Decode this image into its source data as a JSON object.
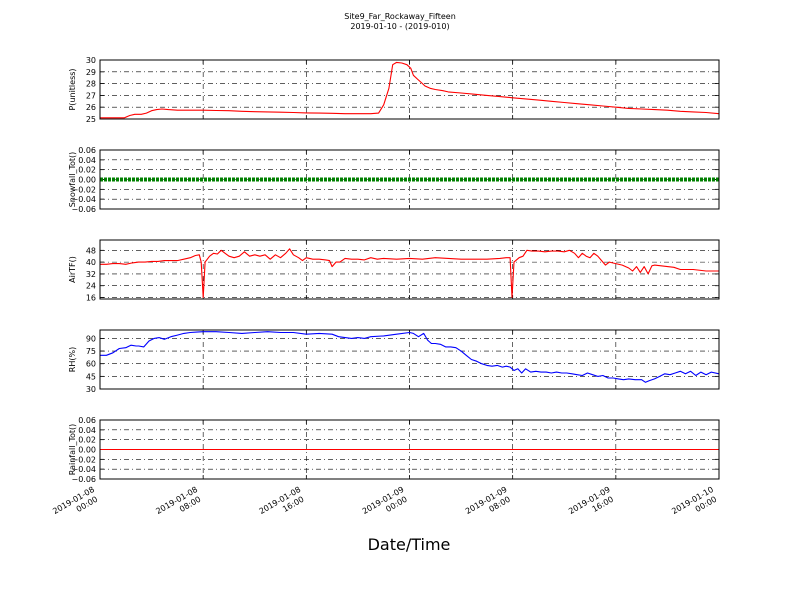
{
  "chart_data": {
    "type": "line",
    "title": "Site9_Far_Rockaway_Fifteen",
    "subtitle": "2019-01-10 - (2019-010)",
    "xlabel": "Date/Time",
    "x_ticks": [
      {
        "value": 0,
        "label": [
          "2019-01-08",
          "00:00"
        ]
      },
      {
        "value": 8,
        "label": [
          "2019-01-08",
          "08:00"
        ]
      },
      {
        "value": 16,
        "label": [
          "2019-01-08",
          "16:00"
        ]
      },
      {
        "value": 24,
        "label": [
          "2019-01-09",
          "00:00"
        ]
      },
      {
        "value": 32,
        "label": [
          "2019-01-09",
          "08:00"
        ]
      },
      {
        "value": 40,
        "label": [
          "2019-01-09",
          "16:00"
        ]
      },
      {
        "value": 48,
        "label": [
          "2019-01-10",
          "00:00"
        ]
      }
    ],
    "xlim": [
      0,
      48
    ],
    "grid": true,
    "panels": [
      {
        "ylabel": "P(unitless)",
        "ylim": [
          25,
          30
        ],
        "yticks": [
          25,
          26,
          27,
          28,
          29,
          30
        ],
        "color": "#ff0000",
        "style": "line",
        "points": [
          [
            0,
            25.1
          ],
          [
            1.9,
            25.1
          ],
          [
            2.3,
            25.3
          ],
          [
            2.7,
            25.4
          ],
          [
            3.2,
            25.4
          ],
          [
            3.6,
            25.5
          ],
          [
            4,
            25.7
          ],
          [
            4.4,
            25.8
          ],
          [
            4.8,
            25.85
          ],
          [
            5.3,
            25.8
          ],
          [
            6,
            25.75
          ],
          [
            7,
            25.75
          ],
          [
            8,
            25.75
          ],
          [
            9,
            25.72
          ],
          [
            10,
            25.7
          ],
          [
            11,
            25.65
          ],
          [
            12,
            25.62
          ],
          [
            13,
            25.6
          ],
          [
            14,
            25.58
          ],
          [
            15,
            25.55
          ],
          [
            16,
            25.52
          ],
          [
            17,
            25.5
          ],
          [
            18,
            25.48
          ],
          [
            19,
            25.45
          ],
          [
            20,
            25.45
          ],
          [
            21,
            25.45
          ],
          [
            21.6,
            25.5
          ],
          [
            22,
            26.2
          ],
          [
            22.4,
            27.6
          ],
          [
            22.7,
            29.6
          ],
          [
            23,
            29.8
          ],
          [
            23.4,
            29.75
          ],
          [
            23.8,
            29.6
          ],
          [
            24.1,
            29.3
          ],
          [
            24.3,
            28.7
          ],
          [
            24.6,
            28.4
          ],
          [
            24.9,
            28.1
          ],
          [
            25.2,
            27.8
          ],
          [
            25.6,
            27.6
          ],
          [
            26,
            27.5
          ],
          [
            26.6,
            27.4
          ],
          [
            27,
            27.3
          ],
          [
            28,
            27.2
          ],
          [
            29,
            27.1
          ],
          [
            30,
            27.0
          ],
          [
            31,
            26.9
          ],
          [
            32,
            26.8
          ],
          [
            33,
            26.7
          ],
          [
            34,
            26.6
          ],
          [
            35,
            26.5
          ],
          [
            36,
            26.4
          ],
          [
            37,
            26.3
          ],
          [
            38,
            26.2
          ],
          [
            39,
            26.1
          ],
          [
            40,
            26.0
          ],
          [
            41,
            25.9
          ],
          [
            42,
            25.85
          ],
          [
            43,
            25.8
          ],
          [
            44,
            25.75
          ],
          [
            45,
            25.65
          ],
          [
            46,
            25.6
          ],
          [
            47,
            25.55
          ],
          [
            48,
            25.45
          ]
        ]
      },
      {
        "ylabel": "Snowfall_Tot()",
        "ylim": [
          -0.06,
          0.06
        ],
        "yticks": [
          -0.06,
          -0.04,
          -0.02,
          0.0,
          0.02,
          0.04,
          0.06
        ],
        "ytick_labels": [
          "−0.06",
          "−0.04",
          "−0.02",
          "0.00",
          "0.02",
          "0.04",
          "0.06"
        ],
        "color": "#008000",
        "style": "thick",
        "points": [
          [
            0,
            0
          ],
          [
            48,
            0
          ]
        ]
      },
      {
        "ylabel": "AirTF()",
        "ylim": [
          15,
          55
        ],
        "yticks": [
          16,
          24,
          32,
          40,
          48
        ],
        "color": "#ff0000",
        "style": "line",
        "points": [
          [
            0,
            38.5
          ],
          [
            0.5,
            38.5
          ],
          [
            1,
            39
          ],
          [
            1.5,
            39
          ],
          [
            2,
            38.5
          ],
          [
            2.5,
            39.5
          ],
          [
            3,
            40
          ],
          [
            3.5,
            40
          ],
          [
            4,
            40.5
          ],
          [
            4.5,
            40.5
          ],
          [
            5,
            41
          ],
          [
            6,
            41
          ],
          [
            6.5,
            42
          ],
          [
            7,
            43
          ],
          [
            7.4,
            44.5
          ],
          [
            7.7,
            45
          ],
          [
            7.85,
            40
          ],
          [
            8,
            16
          ],
          [
            8.15,
            40
          ],
          [
            8.5,
            44
          ],
          [
            8.8,
            46
          ],
          [
            9.1,
            45.5
          ],
          [
            9.4,
            48
          ],
          [
            9.7,
            46
          ],
          [
            10,
            44
          ],
          [
            10.4,
            43
          ],
          [
            10.8,
            44
          ],
          [
            11.2,
            47
          ],
          [
            11.6,
            44
          ],
          [
            12,
            45
          ],
          [
            12.4,
            44
          ],
          [
            12.8,
            45
          ],
          [
            13.2,
            42
          ],
          [
            13.6,
            45
          ],
          [
            14,
            43
          ],
          [
            14.4,
            46
          ],
          [
            14.7,
            49
          ],
          [
            15,
            45
          ],
          [
            15.4,
            43
          ],
          [
            15.7,
            41
          ],
          [
            16,
            43
          ],
          [
            16.5,
            42
          ],
          [
            17,
            42
          ],
          [
            17.5,
            41.5
          ],
          [
            17.8,
            41
          ],
          [
            18,
            37
          ],
          [
            18.3,
            40
          ],
          [
            18.6,
            40
          ],
          [
            19,
            42.5
          ],
          [
            19.5,
            42
          ],
          [
            20,
            42
          ],
          [
            20.5,
            41.5
          ],
          [
            21,
            43
          ],
          [
            21.5,
            42
          ],
          [
            22,
            42.5
          ],
          [
            23,
            42
          ],
          [
            24,
            42.5
          ],
          [
            25,
            42
          ],
          [
            26,
            43
          ],
          [
            27,
            42.5
          ],
          [
            28,
            42
          ],
          [
            29,
            42
          ],
          [
            30,
            42
          ],
          [
            31,
            42.5
          ],
          [
            31.5,
            43
          ],
          [
            31.8,
            43
          ],
          [
            31.95,
            16
          ],
          [
            32.1,
            40
          ],
          [
            32.5,
            43
          ],
          [
            32.8,
            44
          ],
          [
            33.1,
            48
          ],
          [
            33.5,
            47.5
          ],
          [
            34,
            47.5
          ],
          [
            34.5,
            47
          ],
          [
            35,
            47.5
          ],
          [
            35.5,
            47.5
          ],
          [
            36,
            47
          ],
          [
            36.4,
            48
          ],
          [
            36.8,
            46
          ],
          [
            37.1,
            43
          ],
          [
            37.4,
            46
          ],
          [
            37.7,
            44
          ],
          [
            38,
            43
          ],
          [
            38.3,
            46
          ],
          [
            38.6,
            44
          ],
          [
            38.9,
            41
          ],
          [
            39.2,
            38
          ],
          [
            39.5,
            40
          ],
          [
            40,
            39
          ],
          [
            40.5,
            38
          ],
          [
            41,
            36
          ],
          [
            41.3,
            34
          ],
          [
            41.6,
            37
          ],
          [
            41.9,
            33
          ],
          [
            42.2,
            37
          ],
          [
            42.5,
            32
          ],
          [
            42.8,
            37.5
          ],
          [
            43,
            38
          ],
          [
            43.5,
            37.5
          ],
          [
            44,
            37
          ],
          [
            44.5,
            36.5
          ],
          [
            45,
            35
          ],
          [
            45.5,
            35
          ],
          [
            46,
            35
          ],
          [
            47,
            34
          ],
          [
            48,
            34
          ]
        ]
      },
      {
        "ylabel": "RH(%)",
        "ylim": [
          30,
          100
        ],
        "yticks": [
          30,
          45,
          60,
          75,
          90
        ],
        "color": "#0000ff",
        "style": "line",
        "points": [
          [
            0,
            70
          ],
          [
            0.5,
            70
          ],
          [
            1,
            73
          ],
          [
            1.5,
            78
          ],
          [
            2,
            79
          ],
          [
            2.4,
            82
          ],
          [
            2.8,
            81
          ],
          [
            3,
            81
          ],
          [
            3.4,
            80
          ],
          [
            3.8,
            87
          ],
          [
            4.2,
            90
          ],
          [
            4.6,
            91
          ],
          [
            5,
            89
          ],
          [
            5.5,
            92
          ],
          [
            6,
            94
          ],
          [
            6.5,
            96
          ],
          [
            7,
            97
          ],
          [
            7.5,
            97.5
          ],
          [
            8,
            98
          ],
          [
            9,
            98
          ],
          [
            10,
            97
          ],
          [
            11,
            96
          ],
          [
            12,
            97
          ],
          [
            13,
            98
          ],
          [
            14,
            97
          ],
          [
            15,
            97
          ],
          [
            16,
            95
          ],
          [
            17,
            96
          ],
          [
            18,
            95
          ],
          [
            18.5,
            92
          ],
          [
            19,
            91
          ],
          [
            19.5,
            90
          ],
          [
            20,
            91
          ],
          [
            20.5,
            90
          ],
          [
            21,
            92
          ],
          [
            22,
            93
          ],
          [
            23,
            95
          ],
          [
            24,
            97
          ],
          [
            24.3,
            96
          ],
          [
            24.7,
            92
          ],
          [
            25.1,
            96
          ],
          [
            25.4,
            88
          ],
          [
            25.7,
            84
          ],
          [
            26,
            84
          ],
          [
            26.4,
            83
          ],
          [
            26.8,
            80
          ],
          [
            27.2,
            80
          ],
          [
            27.6,
            79
          ],
          [
            28,
            75
          ],
          [
            28.4,
            70
          ],
          [
            28.8,
            65
          ],
          [
            29.2,
            63
          ],
          [
            29.6,
            60
          ],
          [
            30,
            58
          ],
          [
            30.4,
            57
          ],
          [
            30.8,
            58
          ],
          [
            31.2,
            56
          ],
          [
            31.5,
            57
          ],
          [
            31.8,
            56
          ],
          [
            32.1,
            52
          ],
          [
            32.4,
            54
          ],
          [
            32.7,
            49
          ],
          [
            33,
            54
          ],
          [
            33.4,
            50
          ],
          [
            33.8,
            51
          ],
          [
            34.2,
            50
          ],
          [
            34.6,
            50
          ],
          [
            35,
            49
          ],
          [
            35.4,
            50
          ],
          [
            35.8,
            49
          ],
          [
            36.2,
            49
          ],
          [
            36.6,
            48
          ],
          [
            37,
            47
          ],
          [
            37.4,
            46
          ],
          [
            37.8,
            49
          ],
          [
            38.2,
            47
          ],
          [
            38.6,
            45
          ],
          [
            39,
            46
          ],
          [
            39.4,
            43
          ],
          [
            39.8,
            43
          ],
          [
            40.2,
            42
          ],
          [
            40.6,
            41
          ],
          [
            41,
            42
          ],
          [
            41.5,
            41
          ],
          [
            42,
            41
          ],
          [
            42.3,
            38
          ],
          [
            42.6,
            40
          ],
          [
            43,
            42
          ],
          [
            43.4,
            45
          ],
          [
            43.8,
            48
          ],
          [
            44.2,
            47
          ],
          [
            44.6,
            49
          ],
          [
            45,
            51
          ],
          [
            45.4,
            48
          ],
          [
            45.8,
            51
          ],
          [
            46.2,
            46
          ],
          [
            46.6,
            50
          ],
          [
            47,
            47
          ],
          [
            47.4,
            50
          ],
          [
            48,
            48
          ]
        ]
      },
      {
        "ylabel": "Rainfall_Tot()",
        "ylim": [
          -0.06,
          0.06
        ],
        "yticks": [
          -0.06,
          -0.04,
          -0.02,
          0.0,
          0.02,
          0.04,
          0.06
        ],
        "ytick_labels": [
          "−0.06",
          "−0.04",
          "−0.02",
          "0.00",
          "0.02",
          "0.04",
          "0.06"
        ],
        "color": "#ff0000",
        "style": "line",
        "points": [
          [
            0,
            0
          ],
          [
            48,
            0
          ]
        ]
      }
    ]
  }
}
